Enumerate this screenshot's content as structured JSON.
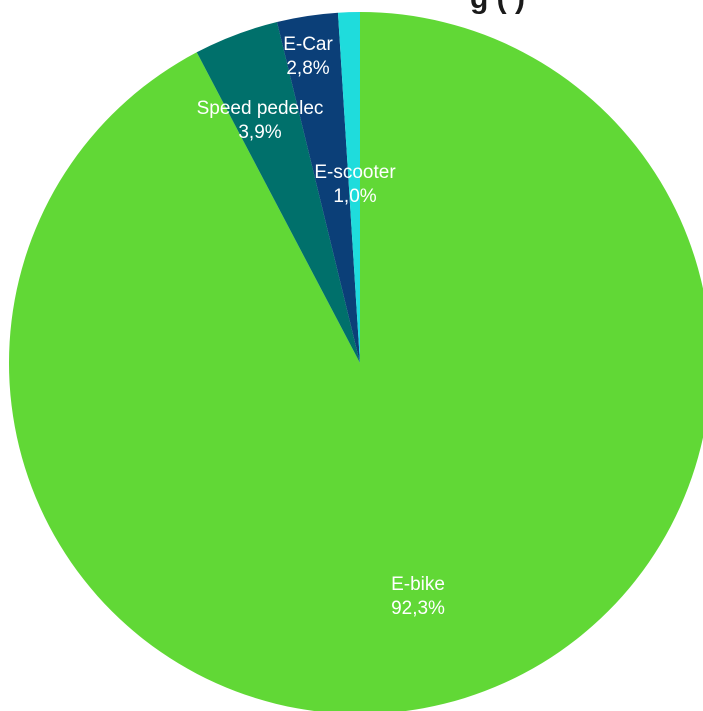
{
  "chart_data": {
    "type": "pie",
    "title_fragment": "g (  )",
    "categories": [
      "E-bike",
      "Speed pedelec",
      "E-Car",
      "E-scooter"
    ],
    "values": [
      92.3,
      3.9,
      2.8,
      1.0
    ],
    "value_labels": [
      "92,3%",
      "3,9%",
      "2,8%",
      "1,0%"
    ],
    "colors": [
      "#61d836",
      "#00706b",
      "#0b3f78",
      "#1fdcdc"
    ],
    "start": "12 o'clock",
    "direction": "clockwise",
    "legend": "none"
  }
}
